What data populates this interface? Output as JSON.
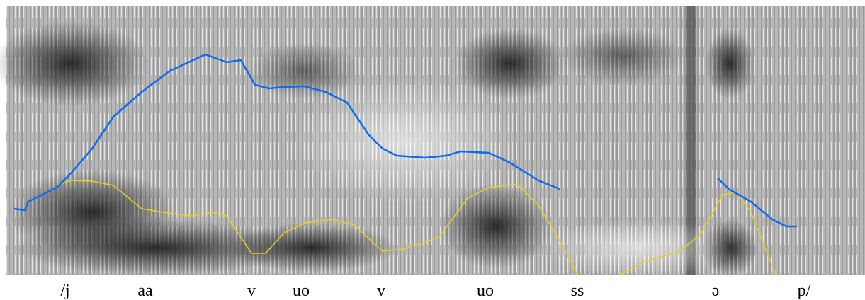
{
  "segments": [
    "/j",
    "aa",
    "v",
    "uo",
    "v",
    "uo",
    "ss",
    "ə",
    "p/"
  ]
}
